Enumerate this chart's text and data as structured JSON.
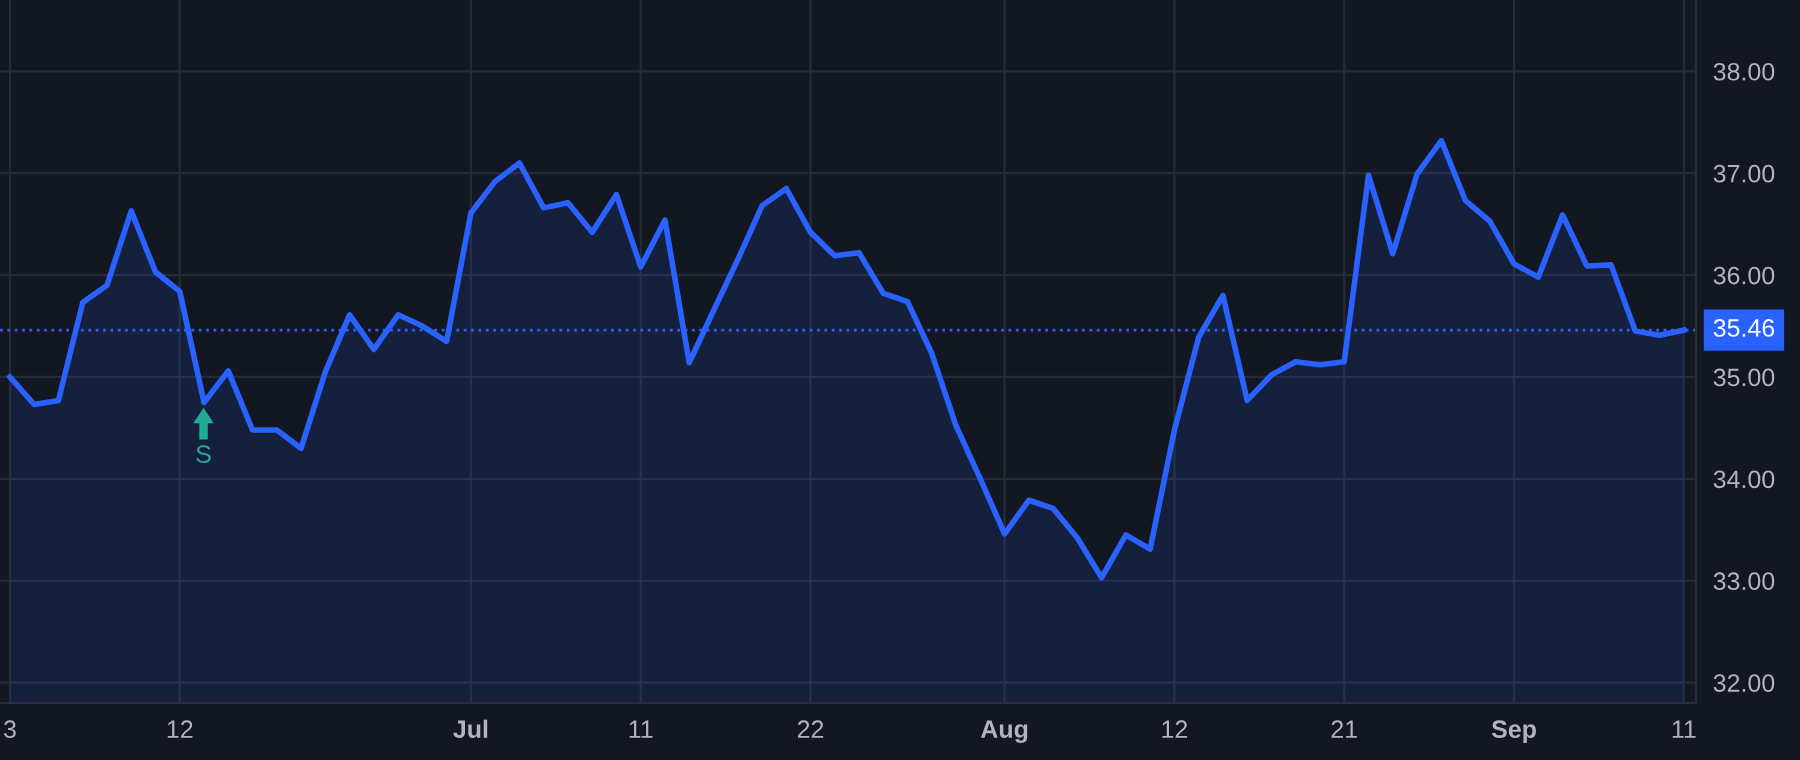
{
  "chart_data": {
    "type": "area",
    "categories": [
      "3",
      null,
      null,
      null,
      null,
      null,
      null,
      "12",
      null,
      null,
      null,
      null,
      null,
      null,
      null,
      null,
      null,
      null,
      null,
      "Jul",
      null,
      null,
      null,
      null,
      null,
      null,
      "11",
      null,
      null,
      null,
      null,
      null,
      null,
      "22",
      null,
      null,
      null,
      null,
      null,
      null,
      null,
      "Aug",
      null,
      null,
      null,
      null,
      null,
      null,
      "12",
      null,
      null,
      null,
      null,
      null,
      null,
      "21",
      null,
      null,
      null,
      null,
      null,
      null,
      "Sep",
      null,
      null,
      null,
      null,
      null,
      null,
      "11"
    ],
    "series": [
      {
        "color": "#2962ff",
        "values": [
          35.0,
          34.73,
          34.77,
          35.73,
          35.9,
          36.63,
          36.03,
          35.84,
          34.75,
          35.06,
          34.48,
          34.48,
          34.3,
          35.05,
          35.61,
          35.27,
          35.61,
          35.5,
          35.35,
          36.61,
          36.92,
          37.1,
          36.66,
          36.71,
          36.42,
          36.79,
          36.08,
          36.54,
          35.14,
          35.65,
          36.15,
          36.68,
          36.85,
          36.42,
          36.19,
          36.22,
          35.82,
          35.74,
          35.23,
          34.52,
          34.0,
          33.46,
          33.79,
          33.71,
          33.42,
          33.03,
          33.45,
          33.31,
          34.48,
          35.39,
          35.8,
          34.77,
          35.02,
          35.15,
          35.12,
          35.15,
          36.98,
          36.21,
          36.99,
          37.32,
          36.73,
          36.53,
          36.11,
          35.98,
          36.59,
          36.09,
          36.1,
          35.45,
          35.41,
          35.46
        ]
      }
    ],
    "ylim": [
      31.8,
      38.7
    ],
    "yticks": [
      {
        "value": 32,
        "label": "32.00"
      },
      {
        "value": 33,
        "label": "33.00"
      },
      {
        "value": 34,
        "label": "34.00"
      },
      {
        "value": 35,
        "label": "35.00"
      },
      {
        "value": 36,
        "label": "36.00"
      },
      {
        "value": 37,
        "label": "37.00"
      },
      {
        "value": 38,
        "label": "38.00"
      }
    ],
    "ref_lines": [
      {
        "axis": "y",
        "value": 35.46,
        "label": "35.46",
        "color": "#2962ff",
        "line_style": "dotted"
      }
    ],
    "annotations": [
      "S"
    ],
    "grid": true,
    "marker": "none",
    "line_style": "solid"
  }
}
